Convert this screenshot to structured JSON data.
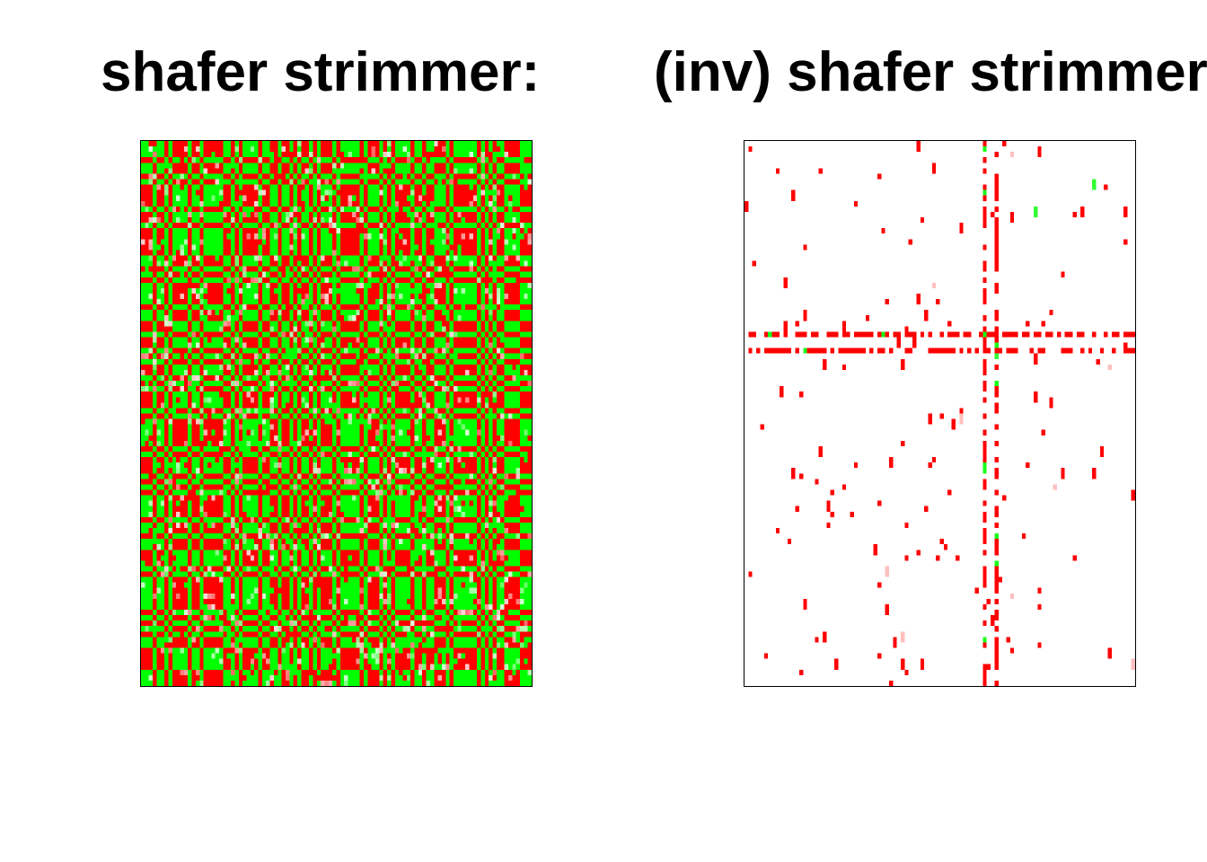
{
  "chart_data": [
    {
      "type": "heatmap",
      "title": "shafer strimmer:",
      "colors": {
        "negative": "#FF0000",
        "zero": "#FFFFFF",
        "positive": "#00FF00"
      },
      "value_range": [
        -1,
        1
      ],
      "grid_rows": 100,
      "grid_cols": 100,
      "pattern": "dense block-structured correlation matrix of red and green blocks"
    },
    {
      "type": "heatmap",
      "title": "(inv) shafer strimmer",
      "colors": {
        "negative": "#FF0000",
        "zero": "#FFFFFF",
        "positive": "#00FF00"
      },
      "value_range": [
        -1,
        1
      ],
      "grid_rows": 100,
      "grid_cols": 100,
      "pattern": "sparse: mostly zero, with two dense rows and two dense columns plus scattered red cells"
    }
  ]
}
